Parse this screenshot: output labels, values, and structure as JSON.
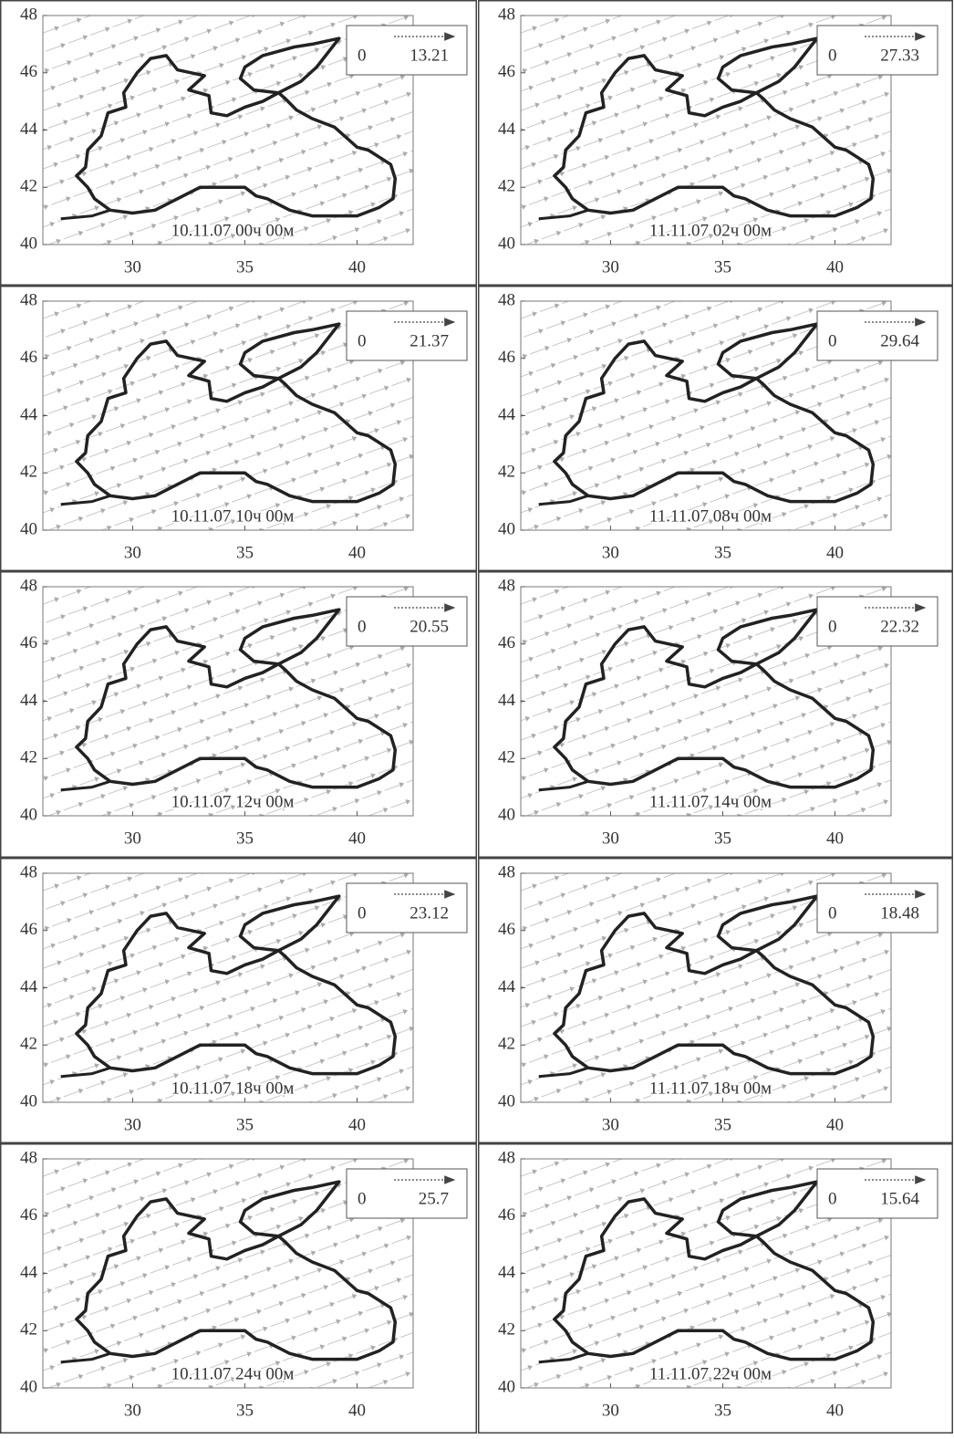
{
  "chart_data": [
    {
      "type": "quiver",
      "annotation": "10.11.07  00ч 00м",
      "reference_vector": [
        0,
        13.21
      ],
      "xlim": [
        26,
        42.5
      ],
      "ylim": [
        40,
        48
      ],
      "xticks": [
        30,
        35,
        40
      ],
      "yticks": [
        40,
        42,
        44,
        46,
        48
      ]
    },
    {
      "type": "quiver",
      "annotation": "10.11.07  10ч 00м",
      "reference_vector": [
        0,
        21.37
      ],
      "xlim": [
        26,
        42.5
      ],
      "ylim": [
        40,
        48
      ],
      "xticks": [
        30,
        35,
        40
      ],
      "yticks": [
        40,
        42,
        44,
        46,
        48
      ]
    },
    {
      "type": "quiver",
      "annotation": "10.11.07  12ч 00м",
      "reference_vector": [
        0,
        20.55
      ],
      "xlim": [
        26,
        42.5
      ],
      "ylim": [
        40,
        48
      ],
      "xticks": [
        30,
        35,
        40
      ],
      "yticks": [
        40,
        42,
        44,
        46,
        48
      ]
    },
    {
      "type": "quiver",
      "annotation": "10.11.07  18ч 00м",
      "reference_vector": [
        0,
        23.12
      ],
      "xlim": [
        26,
        42.5
      ],
      "ylim": [
        40,
        48
      ],
      "xticks": [
        30,
        35,
        40
      ],
      "yticks": [
        40,
        42,
        44,
        46,
        48
      ]
    },
    {
      "type": "quiver",
      "annotation": "10.11.07  24ч 00м",
      "reference_vector": [
        0,
        25.7
      ],
      "xlim": [
        26,
        42.5
      ],
      "ylim": [
        40,
        48
      ],
      "xticks": [
        30,
        35,
        40
      ],
      "yticks": [
        40,
        42,
        44,
        46,
        48
      ]
    },
    {
      "type": "quiver",
      "annotation": "11.11.07  02ч 00м",
      "reference_vector": [
        0,
        27.33
      ],
      "xlim": [
        26,
        42.5
      ],
      "ylim": [
        40,
        48
      ],
      "xticks": [
        30,
        35,
        40
      ],
      "yticks": [
        40,
        42,
        44,
        46,
        48
      ]
    },
    {
      "type": "quiver",
      "annotation": "11.11.07  08ч 00м",
      "reference_vector": [
        0,
        29.64
      ],
      "xlim": [
        26,
        42.5
      ],
      "ylim": [
        40,
        48
      ],
      "xticks": [
        30,
        35,
        40
      ],
      "yticks": [
        40,
        42,
        44,
        46,
        48
      ]
    },
    {
      "type": "quiver",
      "annotation": "11.11.07  14ч 00м",
      "reference_vector": [
        0,
        22.32
      ],
      "xlim": [
        26,
        42.5
      ],
      "ylim": [
        40,
        48
      ],
      "xticks": [
        30,
        35,
        40
      ],
      "yticks": [
        40,
        42,
        44,
        46,
        48
      ]
    },
    {
      "type": "quiver",
      "annotation": "11.11.07  18ч 00м",
      "reference_vector": [
        0,
        18.48
      ],
      "xlim": [
        26,
        42.5
      ],
      "ylim": [
        40,
        48
      ],
      "xticks": [
        30,
        35,
        40
      ],
      "yticks": [
        40,
        42,
        44,
        46,
        48
      ]
    },
    {
      "type": "quiver",
      "annotation": "11.11.07  22ч 00м",
      "reference_vector": [
        0,
        15.64
      ],
      "xlim": [
        26,
        42.5
      ],
      "ylim": [
        40,
        48
      ],
      "xticks": [
        30,
        35,
        40
      ],
      "yticks": [
        40,
        42,
        44,
        46,
        48
      ]
    }
  ]
}
